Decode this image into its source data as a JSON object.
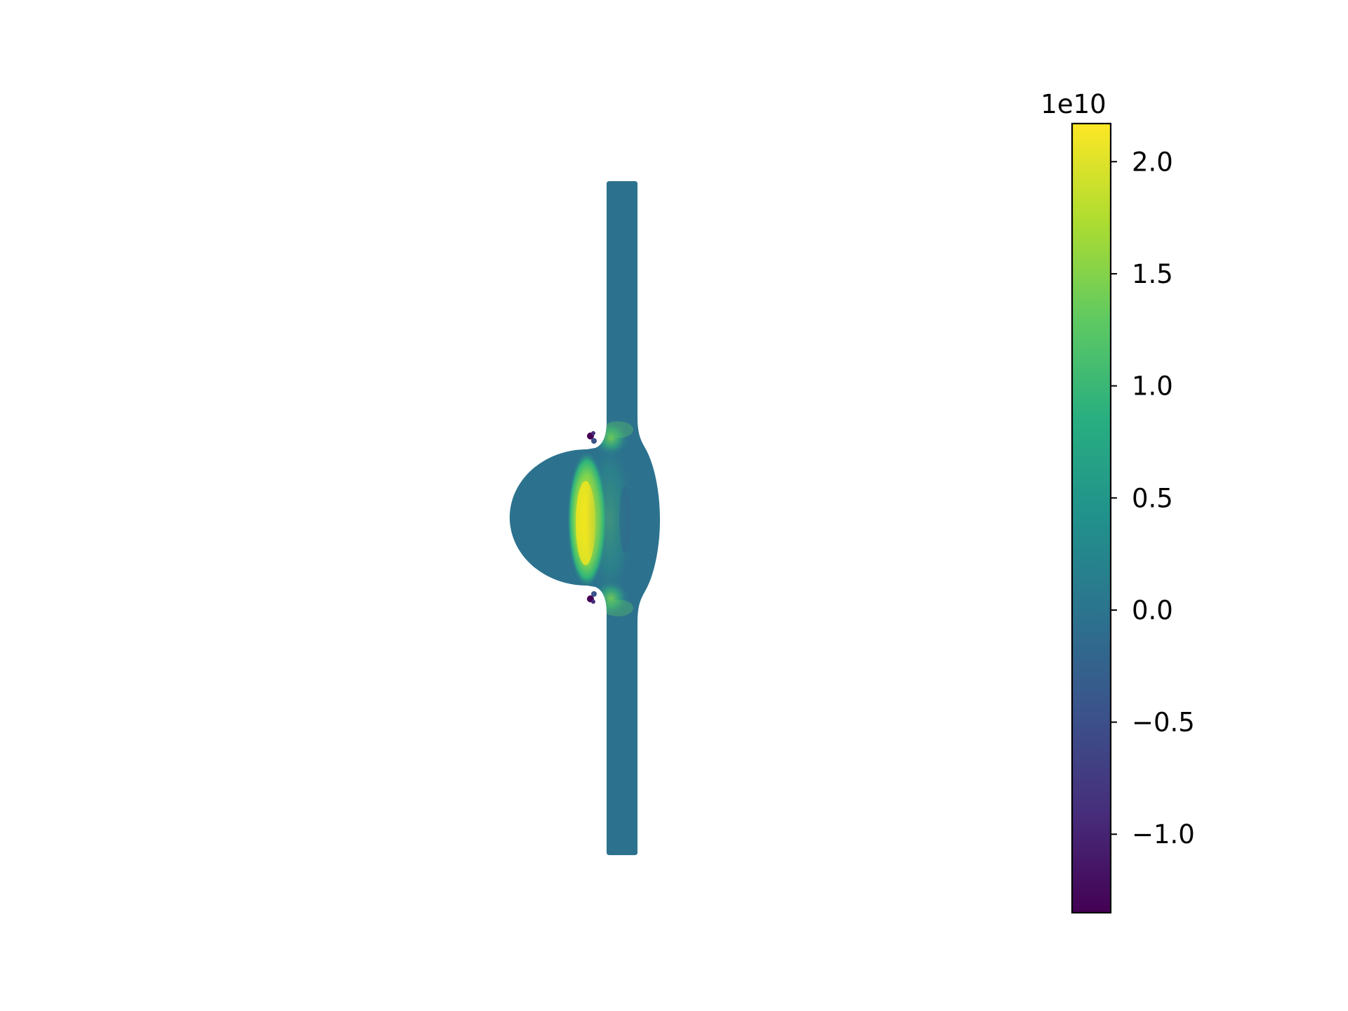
{
  "chart_data": {
    "type": "heatmap",
    "colormap": "viridis",
    "axes_visible": false,
    "field_range": [
      -13500000000.0,
      21700000000.0
    ],
    "background_value": 0,
    "colorbar": {
      "orientation": "vertical",
      "placement": "right",
      "scale_label": "1e10",
      "min": -1.35,
      "max": 2.17,
      "ticks": [
        {
          "value": 2.0,
          "label": "2.0"
        },
        {
          "value": 1.5,
          "label": "1.5"
        },
        {
          "value": 1.0,
          "label": "1.0"
        },
        {
          "value": 0.5,
          "label": "0.5"
        },
        {
          "value": 0.0,
          "label": "0.0"
        },
        {
          "value": -0.5,
          "label": "−0.5"
        },
        {
          "value": -1.0,
          "label": "−1.0"
        }
      ]
    }
  }
}
